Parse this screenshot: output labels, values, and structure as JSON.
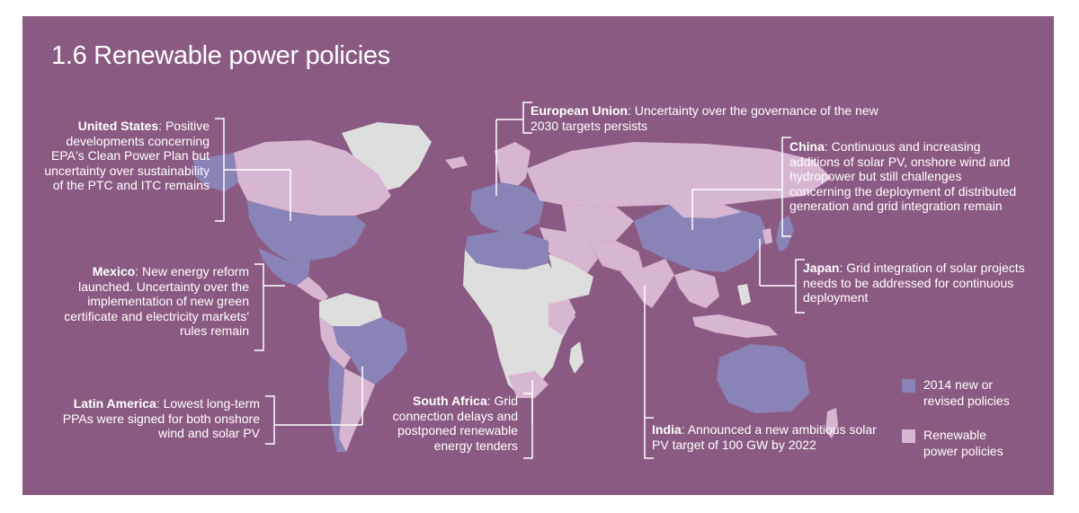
{
  "title": "1.6 Renewable power policies",
  "colors": {
    "background": "#8b5a82",
    "new_or_revised": "#8a83b7",
    "renewable_policies": "#d7b6d2",
    "no_policy": "#dedede",
    "annotation": "#ffffff"
  },
  "annotations": {
    "us": {
      "name": "United States",
      "text": "Positive developments concerning EPA's Clean Power Plan but uncertainty over sustainability of the PTC and ITC remains"
    },
    "mexico": {
      "name": "Mexico",
      "text": "New energy reform launched. Uncertainty over the implementation of new green certificate and electricity markets' rules remain"
    },
    "latam": {
      "name": "Latin America",
      "text": "Lowest long-term PPAs were signed for both onshore wind and solar PV"
    },
    "eu": {
      "name": "European Union",
      "text": "Uncertainty over the governance of the new 2030 targets persists"
    },
    "china": {
      "name": "China",
      "text": "Continuous and increasing additions of solar PV, onshore wind and hydropower but still challenges concerning the deployment of distributed generation and grid integration remain"
    },
    "japan": {
      "name": "Japan",
      "text": "Grid integration of solar projects needs to be addressed for continuous deployment"
    },
    "south_africa": {
      "name": "South Africa",
      "text": "Grid connection delays and postponed renewable energy tenders"
    },
    "india": {
      "name": "India",
      "text": "Announced a new ambitious solar PV target of 100 GW by 2022"
    }
  },
  "legend": [
    {
      "label_line1": "2014 new or",
      "label_line2": "revised policies",
      "color": "#8a83b7"
    },
    {
      "label_line1": "Renewable",
      "label_line2": "power policies",
      "color": "#d7b6d2"
    }
  ]
}
